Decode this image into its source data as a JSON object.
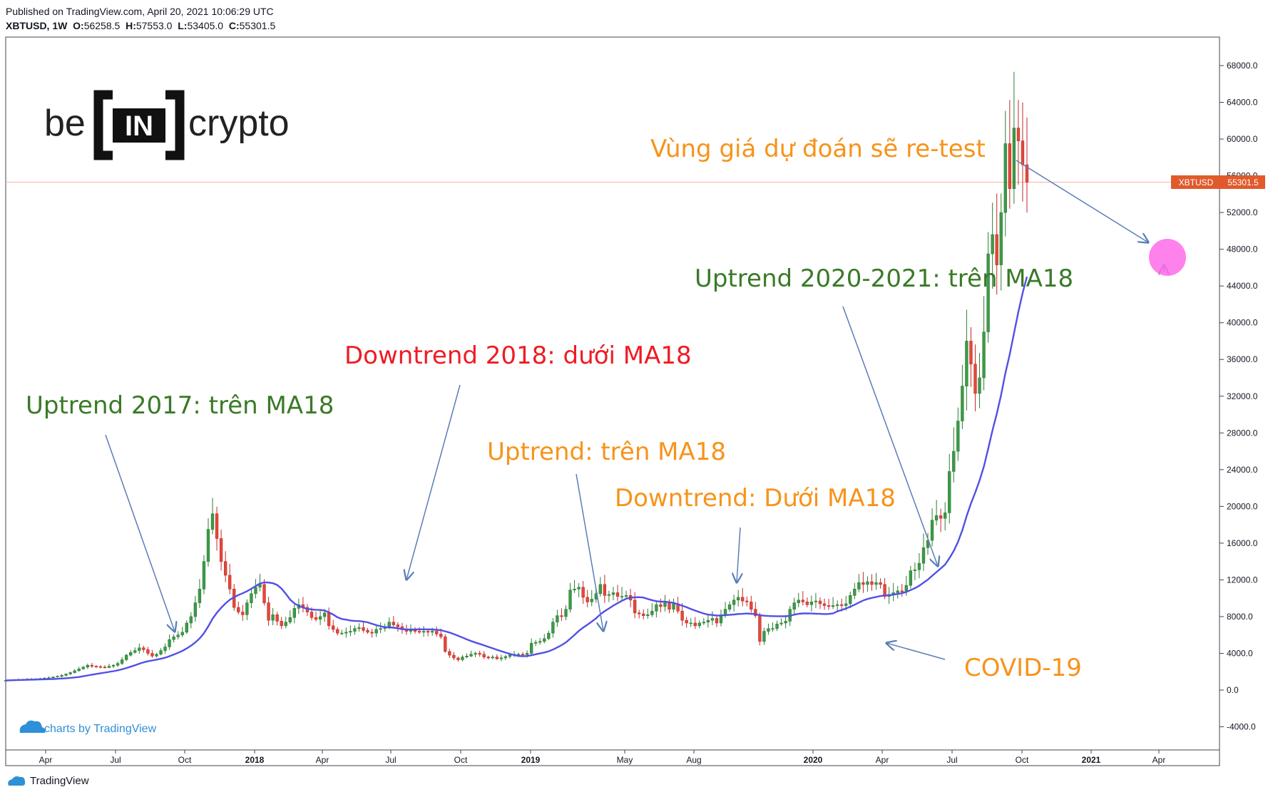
{
  "header": {
    "published": "Published on TradingView.com, April 20, 2021 10:06:29 UTC",
    "symbol": "XBTUSD, 1W",
    "o_label": "O:",
    "o": "56258.5",
    "h_label": "H:",
    "h": "57553.0",
    "l_label": "L:",
    "l": "53405.0",
    "c_label": "C:",
    "c": "55301.5"
  },
  "logo": {
    "left": "be",
    "center": "IN",
    "right": "crypto"
  },
  "price_tag": {
    "symbol": "XBTUSD",
    "price": "55301.5"
  },
  "watermark": "charts by TradingView",
  "footer": "TradingView",
  "colors": {
    "up": "#26a69a",
    "up_body": "#2e7d32",
    "down": "#c62828",
    "ma": "#5050e6",
    "accent_orange": "#f7931a",
    "green_text": "#3a7a27",
    "red_text": "#ee1c24",
    "circle": "#ff6be8"
  },
  "annotations": [
    {
      "id": "uptrend-2017",
      "text": "Uptrend 2017: trên MA18",
      "color": "#3a7a27"
    },
    {
      "id": "downtrend-2018",
      "text": "Downtrend 2018: dưới MA18",
      "color": "#ee1c24"
    },
    {
      "id": "uptrend-2019",
      "text": "Uptrend: trên MA18",
      "color": "#f7931a"
    },
    {
      "id": "downtrend-2019",
      "text": "Downtrend: Dưới MA18",
      "color": "#f7931a"
    },
    {
      "id": "uptrend-2020",
      "text": "Uptrend 2020-2021: trên MA18",
      "color": "#3a7a27"
    },
    {
      "id": "retest-zone",
      "text": "Vùng giá dự đoán sẽ re-test",
      "color": "#f7931a"
    },
    {
      "id": "covid",
      "text": "COVID-19",
      "color": "#f7931a"
    }
  ],
  "chart_data": {
    "type": "candlestick",
    "interval": "1W",
    "ylim": [
      -6000,
      70000
    ],
    "y_ticks": [
      "-4000.0",
      "0.0",
      "4000.0",
      "8000.0",
      "12000.0",
      "16000.0",
      "20000.0",
      "24000.0",
      "28000.0",
      "32000.0",
      "36000.0",
      "40000.0",
      "44000.0",
      "48000.0",
      "52000.0",
      "56000.0",
      "60000.0",
      "64000.0",
      "68000.0"
    ],
    "x_ticks": [
      "Apr",
      "Jul",
      "Oct",
      "2018",
      "Apr",
      "Jul",
      "Oct",
      "2019",
      "May",
      "Aug",
      "2020",
      "Apr",
      "Jul",
      "Oct",
      "2021",
      "Apr"
    ],
    "ma_period": 18,
    "ma_label": "MA18",
    "close_series": [
      1050,
      1080,
      1100,
      1140,
      1160,
      1200,
      1180,
      1230,
      1260,
      1300,
      1350,
      1420,
      1500,
      1600,
      1750,
      1900,
      2100,
      2300,
      2500,
      2700,
      2600,
      2550,
      2500,
      2450,
      2600,
      2700,
      2900,
      3300,
      3800,
      4100,
      4300,
      4600,
      4400,
      4000,
      3700,
      3900,
      4300,
      4700,
      5500,
      5800,
      6000,
      6300,
      7300,
      8000,
      9500,
      11000,
      14000,
      17500,
      19200,
      16500,
      14000,
      12500,
      11000,
      9000,
      8500,
      8200,
      9500,
      10500,
      11200,
      11500,
      9500,
      7600,
      8200,
      7500,
      7000,
      7400,
      7900,
      8900,
      9300,
      9000,
      8500,
      7900,
      7700,
      8000,
      8400,
      7000,
      6600,
      6200,
      6200,
      6300,
      6400,
      6700,
      6800,
      6500,
      6300,
      6200,
      6600,
      6700,
      6900,
      7400,
      7100,
      6900,
      6600,
      6400,
      6500,
      6400,
      6300,
      6400,
      6300,
      6400,
      6100,
      5800,
      4200,
      3800,
      3500,
      3300,
      3600,
      3700,
      3900,
      4000,
      3900,
      3600,
      3500,
      3600,
      3400,
      3500,
      3650,
      3800,
      3900,
      3900,
      3850,
      4000,
      5100,
      5200,
      5300,
      5600,
      6200,
      7400,
      8100,
      8000,
      8800,
      10900,
      11000,
      11200,
      10100,
      9600,
      9900,
      10500,
      11500,
      10300,
      10400,
      10600,
      10200,
      10200,
      10300,
      9800,
      8400,
      8300,
      8100,
      8200,
      8600,
      9300,
      9100,
      9500,
      8800,
      9400,
      8600,
      7600,
      7300,
      7300,
      7000,
      7300,
      7400,
      7600,
      7800,
      7300,
      8200,
      8800,
      9300,
      9800,
      10100,
      9700,
      9600,
      8800,
      8100,
      5300,
      6400,
      6700,
      6700,
      7200,
      7300,
      7500,
      8800,
      9500,
      9800,
      9600,
      9300,
      9600,
      9700,
      9400,
      9200,
      9100,
      9200,
      9300,
      9200,
      9400,
      10300,
      11000,
      11700,
      11500,
      11800,
      11500,
      11700,
      11500,
      10200,
      10400,
      10600,
      10800,
      10700,
      11400,
      13000,
      13100,
      13800,
      15500,
      16300,
      18500,
      19000,
      18700,
      19300,
      23800,
      26000,
      29300,
      33100,
      38000,
      35500,
      32300,
      34000,
      39000,
      47500,
      49600,
      46300,
      52000,
      59500,
      54600,
      61200,
      59800,
      57200,
      55300
    ],
    "ma_series_approx": "computed 18-period SMA of close_series"
  }
}
